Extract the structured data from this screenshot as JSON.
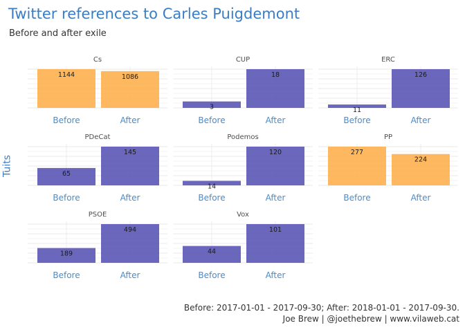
{
  "title": "Twitter references to Carles Puigdemont",
  "subtitle": "Before and after exile",
  "caption_line1": "Before: 2017-01-01 - 2017-09-30; After: 2018-01-01 - 2017-09-30.",
  "caption_line2": "Joe Brew | @joethebrew | www.vilaweb.cat",
  "colors": {
    "high": "#fdb04f",
    "low": "#5a57b6",
    "title": "#3a7dc4"
  },
  "chart_data": {
    "type": "bar",
    "facet": true,
    "ylabel": "Tuits",
    "categories": [
      "Before",
      "After"
    ],
    "panels": [
      {
        "name": "Cs",
        "values": [
          1144,
          1086
        ],
        "ymax": 1144,
        "colors": [
          "high",
          "high"
        ]
      },
      {
        "name": "CUP",
        "values": [
          3,
          18
        ],
        "ymax": 18,
        "colors": [
          "low",
          "low"
        ]
      },
      {
        "name": "ERC",
        "values": [
          11,
          126
        ],
        "ymax": 126,
        "colors": [
          "low",
          "low"
        ]
      },
      {
        "name": "PDeCat",
        "values": [
          65,
          145
        ],
        "ymax": 145,
        "colors": [
          "low",
          "low"
        ]
      },
      {
        "name": "Podemos",
        "values": [
          14,
          120
        ],
        "ymax": 120,
        "colors": [
          "low",
          "low"
        ]
      },
      {
        "name": "PP",
        "values": [
          277,
          224
        ],
        "ymax": 277,
        "colors": [
          "high",
          "high"
        ]
      },
      {
        "name": "PSOE",
        "values": [
          189,
          494
        ],
        "ymax": 494,
        "colors": [
          "low",
          "low"
        ]
      },
      {
        "name": "Vox",
        "values": [
          44,
          101
        ],
        "ymax": 101,
        "colors": [
          "low",
          "low"
        ]
      }
    ]
  }
}
